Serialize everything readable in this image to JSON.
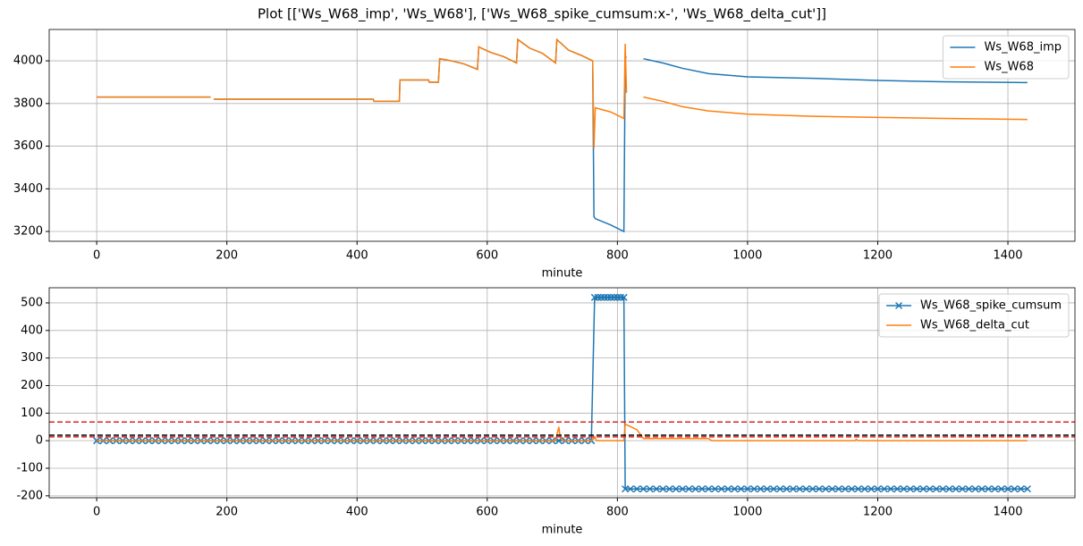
{
  "chart_data": [
    {
      "type": "line",
      "title": "Plot [['Ws_W68_imp', 'Ws_W68'], ['Ws_W68_spike_cumsum:x-', 'Ws_W68_delta_cut']]",
      "xlabel": "minute",
      "grid": true,
      "legend": "upper right",
      "xlim": [
        -73,
        1503
      ],
      "xticks": [
        0,
        200,
        400,
        600,
        800,
        1000,
        1200,
        1400
      ],
      "ylim": [
        3154,
        4147
      ],
      "yticks": [
        3200,
        3400,
        3600,
        3800,
        4000
      ],
      "x": [
        0,
        175,
        178,
        180,
        425,
        426,
        465,
        466,
        510,
        511,
        525,
        527,
        545,
        565,
        585,
        587,
        605,
        625,
        645,
        647,
        665,
        685,
        705,
        707,
        725,
        745,
        762,
        764,
        766,
        790,
        810,
        812,
        814,
        825,
        840,
        870,
        900,
        940,
        1000,
        1100,
        1200,
        1300,
        1430
      ],
      "series": [
        {
          "name": "Ws_W68_imp",
          "color": "#1f77b4",
          "values": [
            3830,
            3830,
            null,
            3820,
            3820,
            3810,
            3810,
            3910,
            3910,
            3900,
            3900,
            4010,
            4000,
            3985,
            3960,
            4065,
            4040,
            4020,
            3990,
            4100,
            4060,
            4035,
            3990,
            4100,
            4050,
            4025,
            4000,
            3270,
            3260,
            3230,
            3200,
            4020,
            4015,
            null,
            4010,
            3990,
            3965,
            3940,
            3925,
            3918,
            3908,
            3902,
            3898
          ]
        },
        {
          "name": "Ws_W68",
          "color": "#ff7f0e",
          "values": [
            3830,
            3830,
            null,
            3820,
            3820,
            3810,
            3810,
            3910,
            3910,
            3900,
            3900,
            4010,
            4000,
            3985,
            3960,
            4065,
            4040,
            4020,
            3990,
            4100,
            4060,
            4035,
            3990,
            4100,
            4050,
            4025,
            4000,
            3590,
            3780,
            3760,
            3730,
            4080,
            3850,
            null,
            3830,
            3810,
            3785,
            3765,
            3750,
            3740,
            3735,
            3730,
            3725
          ]
        }
      ]
    },
    {
      "type": "line",
      "xlabel": "minute",
      "grid": true,
      "legend": "upper right",
      "xlim": [
        -73,
        1503
      ],
      "xticks": [
        0,
        200,
        400,
        600,
        800,
        1000,
        1200,
        1400
      ],
      "ylim": [
        -207,
        555
      ],
      "yticks": [
        -200,
        -100,
        0,
        100,
        200,
        300,
        400,
        500
      ],
      "hlines": [
        {
          "value": 68,
          "color": "#d62728"
        },
        {
          "value": 20,
          "color": "#000000"
        },
        {
          "value": 14,
          "color": "#d62728"
        }
      ],
      "series": [
        {
          "name": "Ws_W68_spike_cumsum",
          "color": "#1f77b4",
          "marker": "x",
          "x": [
            0,
            10,
            20,
            30,
            40,
            50,
            60,
            70,
            80,
            90,
            100,
            110,
            120,
            130,
            140,
            150,
            160,
            170,
            180,
            190,
            200,
            210,
            220,
            230,
            240,
            250,
            260,
            270,
            280,
            290,
            300,
            310,
            320,
            330,
            340,
            350,
            360,
            370,
            380,
            390,
            400,
            410,
            420,
            430,
            440,
            450,
            460,
            470,
            480,
            490,
            500,
            510,
            520,
            530,
            540,
            550,
            560,
            570,
            580,
            590,
            600,
            610,
            620,
            630,
            640,
            650,
            660,
            670,
            680,
            690,
            700,
            710,
            720,
            730,
            740,
            750,
            760,
            765,
            770,
            775,
            780,
            785,
            790,
            795,
            800,
            805,
            810,
            812,
            820,
            830,
            840,
            850,
            860,
            870,
            880,
            890,
            900,
            910,
            920,
            930,
            940,
            950,
            960,
            970,
            980,
            990,
            1000,
            1010,
            1020,
            1030,
            1040,
            1050,
            1060,
            1070,
            1080,
            1090,
            1100,
            1110,
            1120,
            1130,
            1140,
            1150,
            1160,
            1170,
            1180,
            1190,
            1200,
            1210,
            1220,
            1230,
            1240,
            1250,
            1260,
            1270,
            1280,
            1290,
            1300,
            1310,
            1320,
            1330,
            1340,
            1350,
            1360,
            1370,
            1380,
            1390,
            1400,
            1410,
            1420,
            1430
          ],
          "values": [
            0,
            0,
            0,
            0,
            0,
            0,
            0,
            0,
            0,
            0,
            0,
            0,
            0,
            0,
            0,
            0,
            0,
            0,
            0,
            0,
            0,
            0,
            0,
            0,
            0,
            0,
            0,
            0,
            0,
            0,
            0,
            0,
            0,
            0,
            0,
            0,
            0,
            0,
            0,
            0,
            0,
            0,
            0,
            0,
            0,
            0,
            0,
            0,
            0,
            0,
            0,
            0,
            0,
            0,
            0,
            0,
            0,
            0,
            0,
            0,
            0,
            0,
            0,
            0,
            0,
            0,
            0,
            0,
            0,
            0,
            0,
            0,
            0,
            0,
            0,
            0,
            0,
            520,
            520,
            520,
            520,
            520,
            520,
            520,
            520,
            520,
            520,
            -175,
            -175,
            -175,
            -175,
            -175,
            -175,
            -175,
            -175,
            -175,
            -175,
            -175,
            -175,
            -175,
            -175,
            -175,
            -175,
            -175,
            -175,
            -175,
            -175,
            -175,
            -175,
            -175,
            -175,
            -175,
            -175,
            -175,
            -175,
            -175,
            -175,
            -175,
            -175,
            -175,
            -175,
            -175,
            -175,
            -175,
            -175,
            -175,
            -175,
            -175,
            -175,
            -175,
            -175,
            -175,
            -175,
            -175,
            -175,
            -175,
            -175,
            -175,
            -175,
            -175,
            -175,
            -175,
            -175,
            -175,
            -175,
            -175,
            -175,
            -175,
            -175,
            -175
          ]
        },
        {
          "name": "Ws_W68_delta_cut",
          "color": "#ff7f0e",
          "x": [
            0,
            705,
            710,
            712,
            716,
            760,
            765,
            768,
            810,
            812,
            830,
            840,
            940,
            945,
            1165,
            1167,
            1170,
            1430
          ],
          "values": [
            0,
            0,
            50,
            15,
            0,
            0,
            15,
            0,
            0,
            60,
            40,
            8,
            8,
            0,
            0,
            5,
            0,
            0
          ]
        }
      ]
    }
  ]
}
